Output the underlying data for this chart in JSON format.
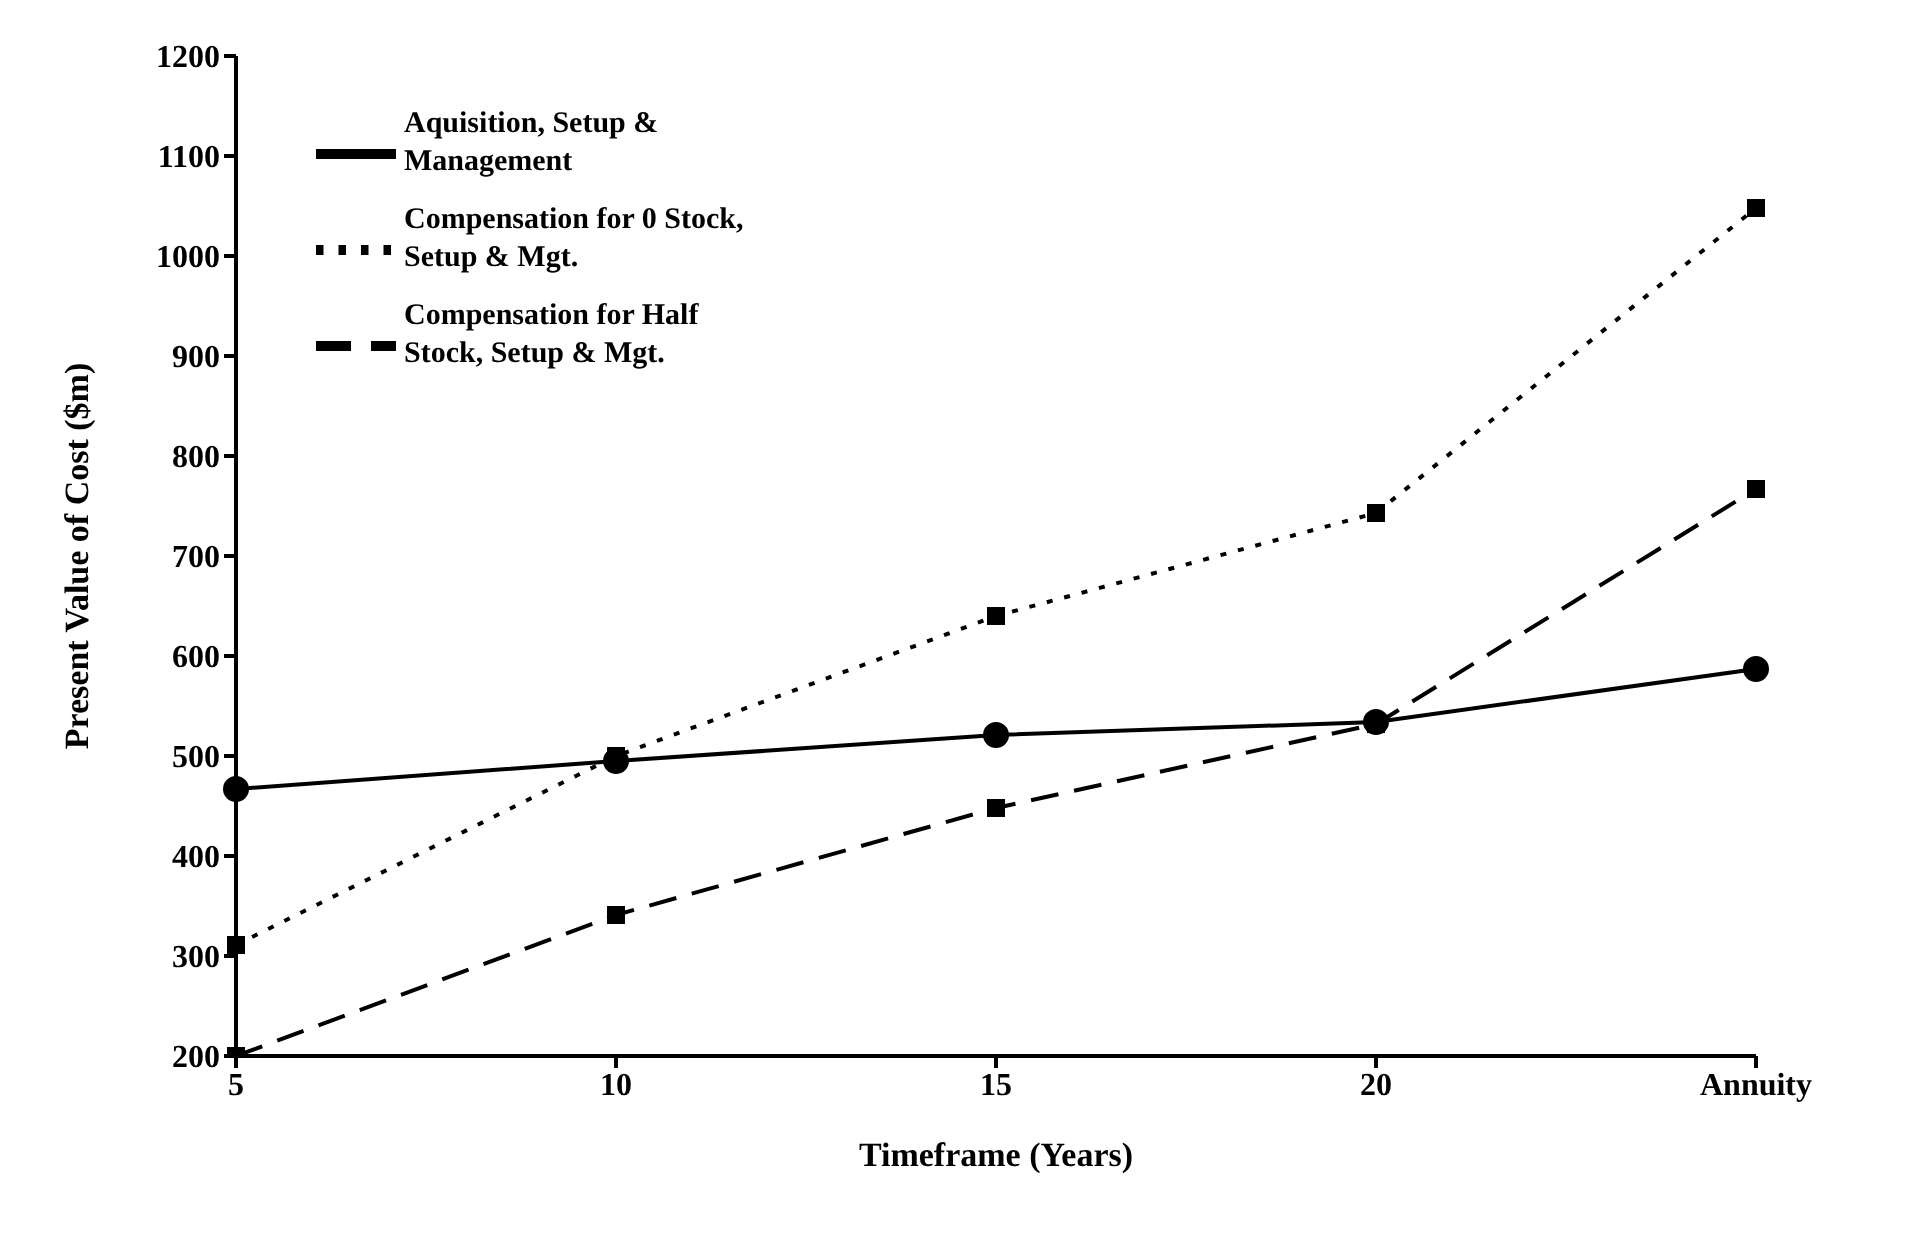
{
  "chart_data": {
    "type": "line",
    "xlabel": "Timeframe (Years)",
    "ylabel": "Present Value of Cost ($m)",
    "categories": [
      "5",
      "10",
      "15",
      "20",
      "Annuity"
    ],
    "series": [
      {
        "name": "Aquisition, Setup & Management",
        "color": "#000000",
        "values": [
          467,
          495,
          521,
          534,
          587
        ],
        "marker": "circle",
        "line_style": "solid"
      },
      {
        "name": "Compensation for 0 Stock, Setup & Mgt.",
        "color": "#000000",
        "values": [
          311,
          500,
          640,
          743,
          1048
        ],
        "marker": "square",
        "line_style": "dotted"
      },
      {
        "name": "Compensation for Half Stock, Setup & Mgt.",
        "color": "#000000",
        "values": [
          200,
          341,
          448,
          532,
          767
        ],
        "marker": "square",
        "line_style": "dashed"
      }
    ],
    "ylim": [
      200,
      1200
    ],
    "yticks": [
      200,
      300,
      400,
      500,
      600,
      700,
      800,
      900,
      1000,
      1100,
      1200
    ],
    "grid": false,
    "legend": "top left"
  }
}
